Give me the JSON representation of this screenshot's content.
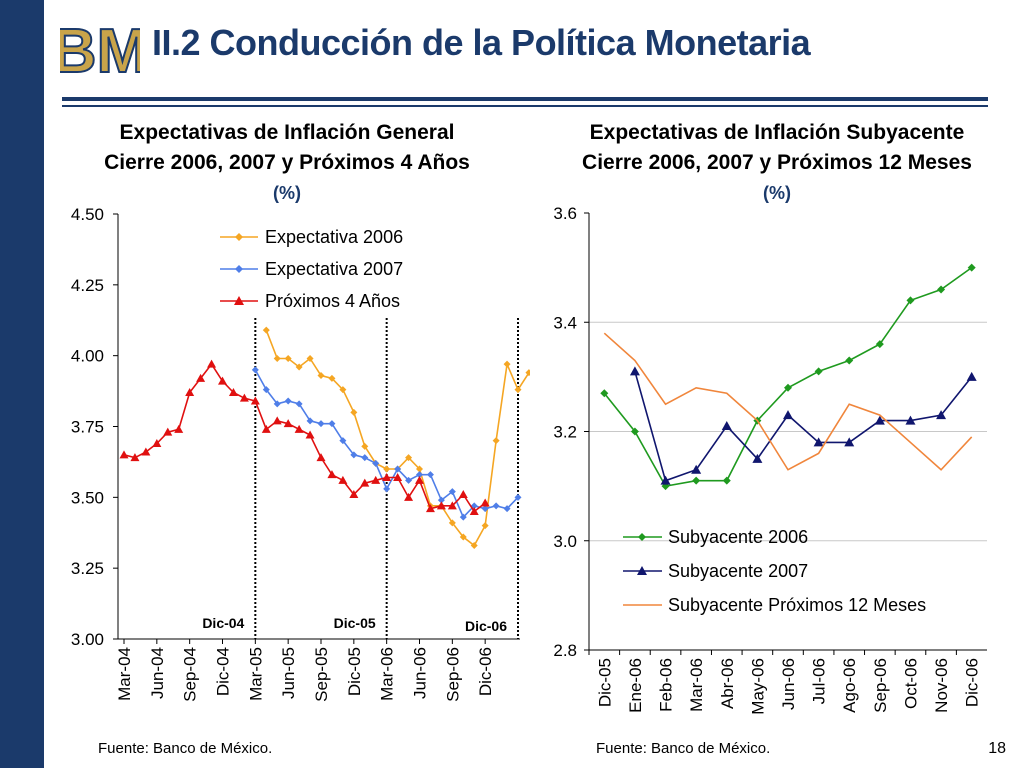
{
  "page": {
    "title": "II.2 Conducción de la Política Monetaria",
    "page_number": "18",
    "logo_text": "BM",
    "brand_color": "#1b3a6b"
  },
  "chart_left": {
    "title_line1": "Expectativas de Inflación General",
    "title_line2": "Cierre 2006, 2007 y Próximos 4 Años",
    "unit": "(%)",
    "source": "Fuente: Banco de México."
  },
  "chart_right": {
    "title_line1": "Expectativas de Inflación Subyacente",
    "title_line2": "Cierre 2006, 2007 y Próximos 12 Meses",
    "unit": "(%)",
    "source": "Fuente: Banco de México."
  },
  "chart_data": [
    {
      "type": "line",
      "ylim": [
        3.0,
        4.5
      ],
      "yticks": [
        "3.00",
        "3.25",
        "3.50",
        "3.75",
        "4.00",
        "4.25",
        "4.50"
      ],
      "ytick_values": [
        3.0,
        3.25,
        3.5,
        3.75,
        4.0,
        4.25,
        4.5
      ],
      "xticks": [
        "Mar-04",
        "Jun-04",
        "Sep-04",
        "Dic-04",
        "Mar-05",
        "Jun-05",
        "Sep-05",
        "Dic-05",
        "Mar-06",
        "Jun-06",
        "Sep-06",
        "Dic-06"
      ],
      "legend_position": "top-center",
      "grid": false,
      "vlines": [
        {
          "label": "Dic-04",
          "x": 12
        },
        {
          "label": "Dic-05",
          "x": 24
        },
        {
          "label": "Dic-06",
          "x": 36
        }
      ],
      "series": [
        {
          "name": "Expectativa 2006",
          "color": "#f5a623",
          "marker": "diamond",
          "start": 13,
          "values": [
            4.09,
            3.99,
            3.99,
            3.96,
            3.99,
            3.93,
            3.92,
            3.88,
            3.8,
            3.68,
            3.62,
            3.6,
            3.6,
            3.64,
            3.6,
            3.47,
            3.47,
            3.41,
            3.36,
            3.33,
            3.4,
            3.7,
            3.97,
            3.88,
            3.94
          ]
        },
        {
          "name": "Expectativa 2007",
          "color": "#4f7ee8",
          "marker": "diamond",
          "start": 12,
          "values": [
            3.95,
            3.88,
            3.83,
            3.84,
            3.83,
            3.77,
            3.76,
            3.76,
            3.7,
            3.65,
            3.64,
            3.62,
            3.53,
            3.6,
            3.56,
            3.58,
            3.58,
            3.49,
            3.52,
            3.43,
            3.47,
            3.46,
            3.47,
            3.46,
            3.5
          ]
        },
        {
          "name": "Próximos 4 Años",
          "color": "#e01010",
          "marker": "triangle",
          "start": 0,
          "values": [
            3.65,
            3.64,
            3.66,
            3.69,
            3.73,
            3.74,
            3.87,
            3.92,
            3.97,
            3.91,
            3.87,
            3.85,
            3.84,
            3.74,
            3.77,
            3.76,
            3.74,
            3.72,
            3.64,
            3.58,
            3.56,
            3.51,
            3.55,
            3.56,
            3.57,
            3.57,
            3.5,
            3.56,
            3.46,
            3.47,
            3.47,
            3.51,
            3.45,
            3.48
          ]
        }
      ]
    },
    {
      "type": "line",
      "ylim": [
        2.8,
        3.6
      ],
      "yticks": [
        "2.8",
        "3.0",
        "3.2",
        "3.4",
        "3.6"
      ],
      "ytick_values": [
        2.8,
        3.0,
        3.2,
        3.4,
        3.6
      ],
      "categories": [
        "Dic-05",
        "Ene-06",
        "Feb-06",
        "Mar-06",
        "Abr-06",
        "May-06",
        "Jun-06",
        "Jul-06",
        "Ago-06",
        "Sep-06",
        "Oct-06",
        "Nov-06",
        "Dic-06"
      ],
      "legend_position": "bottom-right",
      "grid": true,
      "series": [
        {
          "name": "Subyacente 2006",
          "color": "#1f9a1f",
          "marker": "diamond",
          "values": [
            3.27,
            3.2,
            3.1,
            3.11,
            3.11,
            3.22,
            3.28,
            3.31,
            3.33,
            3.36,
            3.44,
            3.46,
            3.5
          ]
        },
        {
          "name": "Subyacente 2007",
          "color": "#10166e",
          "marker": "triangle",
          "values": [
            null,
            3.31,
            3.11,
            3.13,
            3.21,
            3.15,
            3.23,
            3.18,
            3.18,
            3.22,
            3.22,
            3.23,
            3.3
          ]
        },
        {
          "name": "Subyacente Próximos 12 Meses",
          "color": "#f0863c",
          "marker": "none",
          "values": [
            3.38,
            3.33,
            3.25,
            3.28,
            3.27,
            3.22,
            3.13,
            3.16,
            3.25,
            3.23,
            3.18,
            3.13,
            3.19
          ]
        }
      ]
    }
  ]
}
